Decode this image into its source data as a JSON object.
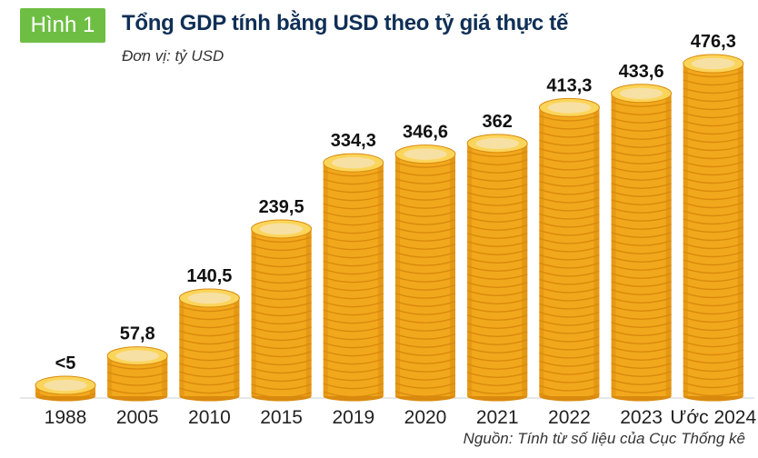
{
  "figure_badge": "Hình 1",
  "colors": {
    "badge": "#6ebe44",
    "title": "#0f2f56",
    "coin_body": "#f2a81c",
    "coin_edge": "#d98a0e",
    "coin_top": "#fbd55a",
    "coin_face": "#f7e0a3"
  },
  "chart_data": {
    "type": "bar",
    "title": "Tổng GDP tính bằng USD theo tỷ giá thực tế",
    "unit": "Đơn vị: tỷ USD",
    "source": "Nguồn: Tính từ số liệu của Cục Thống kê",
    "categories": [
      "1988",
      "2005",
      "2010",
      "2015",
      "2019",
      "2020",
      "2021",
      "2022",
      "2023",
      "Ước 2024"
    ],
    "values": [
      5,
      57.8,
      140.5,
      239.5,
      334.3,
      346.6,
      362,
      413.3,
      433.6,
      476.3
    ],
    "value_labels": [
      "<5",
      "57,8",
      "140,5",
      "239,5",
      "334,3",
      "346,6",
      "362",
      "413,3",
      "433,6",
      "476,3"
    ],
    "ylim": [
      0,
      476.3
    ],
    "style": "stacked coins",
    "grid": false
  }
}
